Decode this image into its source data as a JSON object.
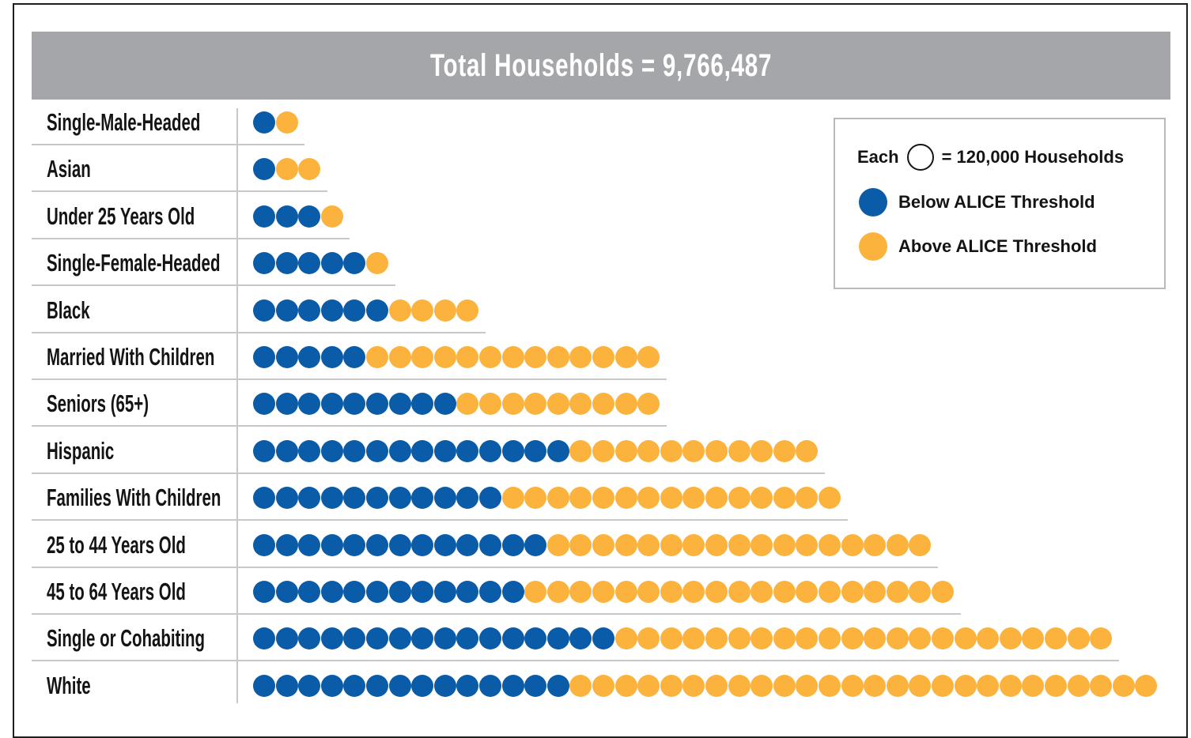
{
  "title": "Total Households = 9,766,487",
  "legend": {
    "each_label": "Each",
    "unit_label": "= 120,000 Households",
    "below_label": "Below ALICE Threshold",
    "above_label": "Above ALICE Threshold"
  },
  "colors": {
    "below": "#0a5ba8",
    "above": "#fbb33d"
  },
  "chart_data": {
    "type": "waffle",
    "unit": "120,000 Households",
    "categories": [
      "Single-Male-Headed",
      "Asian",
      "Under 25 Years Old",
      "Single-Female-Headed",
      "Black",
      "Married With Children",
      "Seniors (65+)",
      "Hispanic",
      "Families With Children",
      "25 to 44 Years Old",
      "45 to 64 Years Old",
      "Single or Cohabiting",
      "White"
    ],
    "series": [
      {
        "name": "Below ALICE Threshold",
        "values": [
          1,
          1,
          3,
          5,
          6,
          5,
          9,
          14,
          11,
          13,
          12,
          16,
          14
        ]
      },
      {
        "name": "Above ALICE Threshold",
        "values": [
          1,
          2,
          1,
          1,
          4,
          13,
          9,
          11,
          15,
          17,
          19,
          22,
          26
        ]
      }
    ]
  }
}
